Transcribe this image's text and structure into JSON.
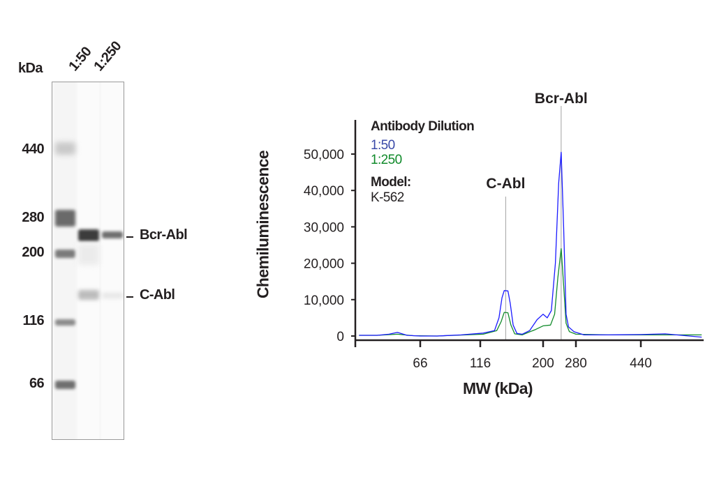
{
  "gel": {
    "unit_label": "kDa",
    "lanes": [
      "1:50",
      "1:250"
    ],
    "ladder": [
      "440",
      "280",
      "200",
      "116",
      "66"
    ],
    "band_labels": [
      "Bcr-Abl",
      "C-Abl"
    ]
  },
  "chart_data": {
    "type": "line",
    "xlabel": "MW (kDa)",
    "ylabel": "Chemiluminescence",
    "x_scale": "nonlinear (molecular weight ladder)",
    "x_ticks": [
      66,
      116,
      200,
      280,
      440
    ],
    "x_tick_labels": [
      "66",
      "116",
      "200",
      "280",
      "440"
    ],
    "y_ticks": [
      0,
      10000,
      20000,
      30000,
      40000,
      50000
    ],
    "y_tick_labels": [
      "0",
      "10,000",
      "20,000",
      "30,000",
      "40,000",
      "50,000"
    ],
    "ylim": [
      0,
      56000
    ],
    "grid": false,
    "legend": {
      "title": "Antibody Dilution",
      "placement": "top-left",
      "model_label": "Model:",
      "model_value": "K-562"
    },
    "annotations": [
      {
        "label": "C-Abl",
        "x": 150
      },
      {
        "label": "Bcr-Abl",
        "x": 244
      }
    ],
    "series": [
      {
        "name": "1:50",
        "color": "#1a1aff",
        "label_color": "#3a4aa8",
        "x": [
          15,
          30,
          40,
          47,
          55,
          66,
          80,
          100,
          120,
          135,
          141,
          145,
          148,
          153,
          156,
          160,
          165,
          172,
          182,
          192,
          200,
          210,
          220,
          230,
          238,
          244,
          250,
          256,
          262,
          275,
          300,
          360,
          440,
          500,
          590
        ],
        "y": [
          200,
          200,
          500,
          1000,
          200,
          0,
          0,
          300,
          800,
          1500,
          5000,
          10500,
          12500,
          12400,
          9000,
          3000,
          700,
          500,
          1500,
          4500,
          6000,
          5000,
          7000,
          20000,
          42000,
          50500,
          30000,
          6000,
          2500,
          1200,
          300,
          300,
          400,
          600,
          -300
        ]
      },
      {
        "name": "1:250",
        "color": "#108a2a",
        "label_color": "#108a2a",
        "x": [
          15,
          30,
          47,
          60,
          80,
          120,
          138,
          144,
          148,
          153,
          157,
          162,
          172,
          190,
          200,
          218,
          228,
          236,
          244,
          250,
          256,
          264,
          280,
          360,
          440,
          590
        ],
        "y": [
          200,
          200,
          500,
          100,
          0,
          500,
          1500,
          4000,
          6500,
          6400,
          3000,
          600,
          300,
          1800,
          2800,
          3000,
          6000,
          16000,
          24000,
          14000,
          3500,
          1200,
          500,
          300,
          300,
          300
        ]
      }
    ]
  }
}
